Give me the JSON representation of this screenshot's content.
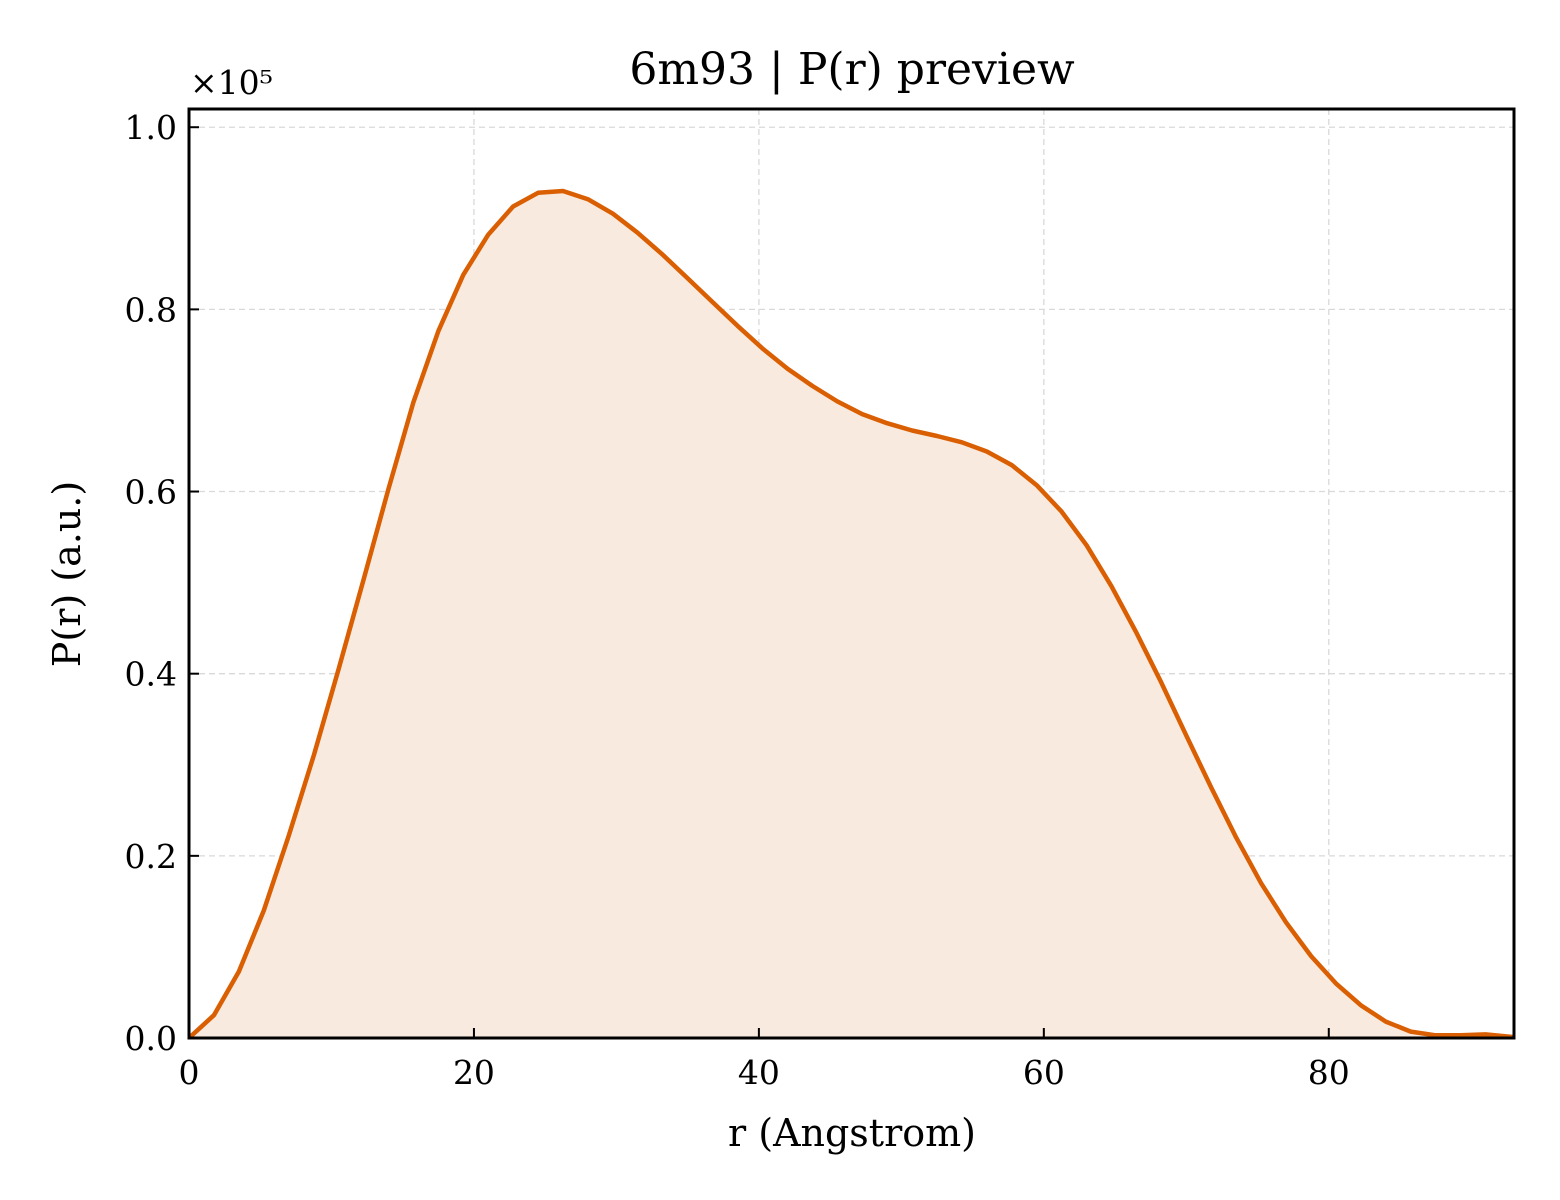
{
  "chart_data": {
    "type": "area",
    "title": "6m93 | P(r) preview",
    "xlabel": "r (Angstrom)",
    "ylabel": "P(r) (a.u.)",
    "y_multiplier": "×10⁵",
    "xlim": [
      0,
      93
    ],
    "ylim": [
      0,
      1.02
    ],
    "x_ticks": [
      0,
      20,
      40,
      60,
      80
    ],
    "x_tick_labels": [
      "0",
      "20",
      "40",
      "60",
      "80"
    ],
    "y_ticks": [
      0,
      0.2,
      0.4,
      0.6,
      0.8,
      1.0
    ],
    "y_tick_labels": [
      "0.0",
      "0.2",
      "0.4",
      "0.6",
      "0.8",
      "1.0"
    ],
    "grid": true,
    "colors": {
      "line": "#d95f02",
      "fill": "#f9eadf"
    },
    "series": [
      {
        "x": [
          0,
          1.75,
          3.5,
          5.25,
          7.0,
          8.75,
          10.5,
          12.25,
          14.0,
          15.75,
          17.5,
          19.25,
          21.0,
          22.75,
          24.5,
          26.25,
          28.0,
          29.75,
          31.5,
          33.25,
          35.0,
          36.75,
          38.5,
          40.25,
          42.0,
          43.75,
          45.5,
          47.25,
          49.0,
          50.75,
          52.5,
          54.25,
          56.0,
          57.75,
          59.5,
          61.25,
          63.0,
          64.75,
          66.5,
          68.25,
          70.0,
          71.75,
          73.5,
          75.25,
          77.0,
          78.75,
          80.5,
          82.25,
          84.0,
          85.75,
          87.5,
          89.25,
          91.0,
          93.0
        ],
        "y": [
          0.0,
          0.025,
          0.073,
          0.14,
          0.222,
          0.31,
          0.405,
          0.503,
          0.603,
          0.698,
          0.776,
          0.838,
          0.882,
          0.913,
          0.928,
          0.93,
          0.921,
          0.905,
          0.884,
          0.86,
          0.834,
          0.808,
          0.782,
          0.757,
          0.735,
          0.716,
          0.699,
          0.685,
          0.675,
          0.667,
          0.661,
          0.654,
          0.644,
          0.629,
          0.607,
          0.578,
          0.541,
          0.496,
          0.445,
          0.39,
          0.332,
          0.275,
          0.22,
          0.17,
          0.127,
          0.09,
          0.06,
          0.036,
          0.018,
          0.007,
          0.003,
          0.003,
          0.004,
          0.001
        ]
      }
    ]
  }
}
